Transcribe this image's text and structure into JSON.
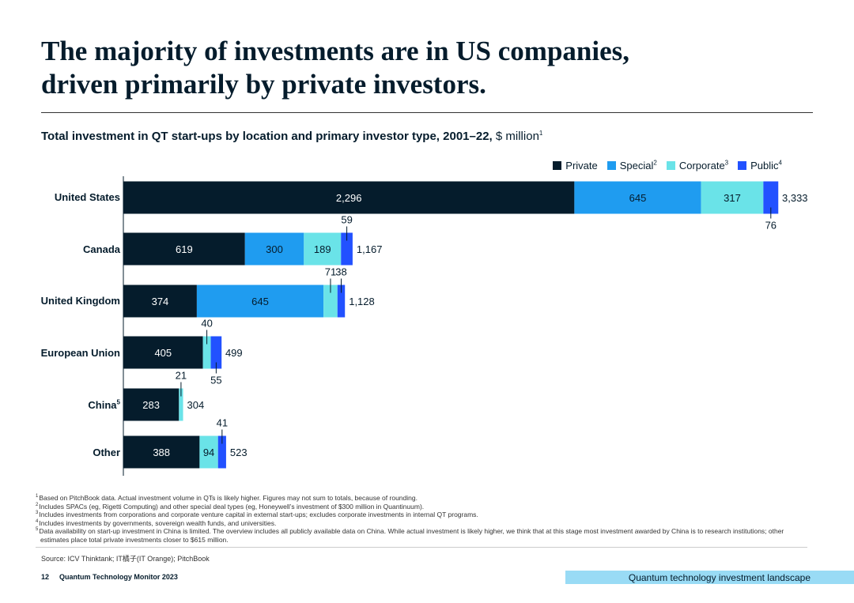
{
  "title": {
    "line1": "The majority of investments are in US companies,",
    "line2": "driven primarily by private investors."
  },
  "subtitle": {
    "bold": "Total investment in QT start-ups by location and primary investor type, 2001–22,",
    "unit": "$ million",
    "note": "1"
  },
  "legend": [
    {
      "label": "Private",
      "note": "",
      "color": "#051c2c"
    },
    {
      "label": "Special",
      "note": "2",
      "color": "#1f9cf0"
    },
    {
      "label": "Corporate",
      "note": "3",
      "color": "#6ae3e8"
    },
    {
      "label": "Public",
      "note": "4",
      "color": "#2251ff"
    }
  ],
  "chart_data": {
    "type": "bar",
    "orientation": "horizontal",
    "stacked": true,
    "title": "Total investment in QT start-ups by location and primary investor type, 2001–22, $ million",
    "categories": [
      {
        "label": "United States",
        "note": ""
      },
      {
        "label": "Canada",
        "note": ""
      },
      {
        "label": "United Kingdom",
        "note": ""
      },
      {
        "label": "European Union",
        "note": ""
      },
      {
        "label": "China",
        "note": "5"
      },
      {
        "label": "Other",
        "note": ""
      }
    ],
    "series": [
      {
        "name": "Private",
        "color": "#051c2c",
        "values": [
          2296,
          619,
          374,
          405,
          283,
          388
        ]
      },
      {
        "name": "Special",
        "color": "#1f9cf0",
        "values": [
          645,
          300,
          645,
          0,
          0,
          0
        ]
      },
      {
        "name": "Corporate",
        "color": "#6ae3e8",
        "values": [
          317,
          189,
          71,
          40,
          21,
          94
        ]
      },
      {
        "name": "Public",
        "color": "#2251ff",
        "values": [
          76,
          59,
          38,
          55,
          0,
          41
        ]
      }
    ],
    "segment_labels": [
      [
        "2,296",
        "645",
        "317",
        "76"
      ],
      [
        "619",
        "300",
        "189",
        "59"
      ],
      [
        "374",
        "645",
        "71",
        "38"
      ],
      [
        "405",
        "",
        "40",
        "55"
      ],
      [
        "283",
        "",
        "21",
        ""
      ],
      [
        "388",
        "",
        "94",
        "41"
      ]
    ],
    "totals": [
      3333,
      1167,
      1128,
      499,
      304,
      523
    ],
    "total_labels": [
      "3,333",
      "1,167",
      "1,128",
      "499",
      "304",
      "523"
    ],
    "xlim": [
      0,
      3333
    ]
  },
  "footnotes": [
    {
      "num": "1",
      "text": "Based on PitchBook data. Actual investment volume in QTs is likely higher. Figures may not sum to totals, because of rounding."
    },
    {
      "num": "2",
      "text": "Includes SPACs (eg, Rigetti Computing) and other special deal types (eg, Honeywell’s investment of $300 million in Quantinuum)."
    },
    {
      "num": "3",
      "text": "Includes investments from corporations and corporate venture capital in external start-ups; excludes corporate investments in internal QT programs."
    },
    {
      "num": "4",
      "text": "Includes investments by governments, sovereign wealth funds, and universities."
    },
    {
      "num": "5",
      "text": "Data availability on start-up investment in China is limited. The overview includes all publicly available data on China. While actual investment is likely higher, we think that at this stage most investment awarded by China is to research institutions; other"
    },
    {
      "num": "",
      "text": "estimates place total private investments closer to $615 million."
    }
  ],
  "source": "Source: ICV Thinktank; IT橘子(IT Orange); PitchBook",
  "footer": {
    "page": "12",
    "report": "Quantum Technology Monitor 2023",
    "section": "Quantum technology investment landscape"
  }
}
